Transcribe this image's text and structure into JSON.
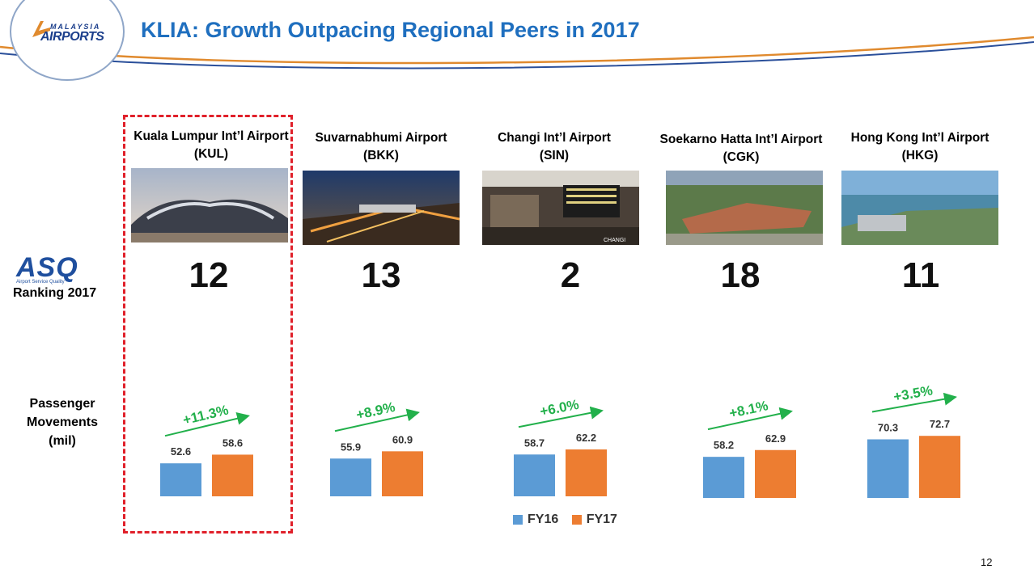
{
  "header": {
    "title": "KLIA: Growth Outpacing Regional Peers in 2017",
    "logo_text_top": "MALAYSIA",
    "logo_text_bottom": "AIRPORTS"
  },
  "left_labels": {
    "asq_logo_word": "ASQ",
    "asq_logo_sub": "Airport Service Quality",
    "asq_caption": "Ranking 2017",
    "pax_caption": [
      "Passenger",
      "Movements",
      "(mil)"
    ]
  },
  "colors": {
    "fy16": "#5b9bd5",
    "fy17": "#ed7d31",
    "growth": "#22b04b",
    "title": "#1f6fbf",
    "highlight": "#e0202a"
  },
  "airports": [
    {
      "name": "Kuala Lumpur Int’l Airport",
      "code": "(KUL)",
      "rank": "12",
      "highlighted": true
    },
    {
      "name": "Suvarnabhumi Airport",
      "code": "(BKK)",
      "rank": "13"
    },
    {
      "name": "Changi Int’l Airport",
      "code": "(SIN)",
      "rank": "2",
      "photo_caption": "CHANGI"
    },
    {
      "name": "Soekarno Hatta Int’l Airport",
      "code": "(CGK)",
      "rank": "18"
    },
    {
      "name": "Hong Kong Int’l Airport",
      "code": "(HKG)",
      "rank": "11"
    }
  ],
  "chart_data": {
    "type": "bar",
    "categories": [
      "KUL",
      "BKK",
      "SIN",
      "CGK",
      "HKG"
    ],
    "series": [
      {
        "name": "FY16",
        "values": [
          52.6,
          55.9,
          58.7,
          58.2,
          70.3
        ]
      },
      {
        "name": "FY17",
        "values": [
          58.6,
          60.9,
          62.2,
          62.9,
          72.7
        ]
      }
    ],
    "growth_labels": [
      "+11.3%",
      "+8.9%",
      "+6.0%",
      "+8.1%",
      "+3.5%"
    ],
    "ylabel": "Passenger Movements (mil)",
    "legend_position": "bottom-center",
    "grid": false
  },
  "page_number": "12"
}
